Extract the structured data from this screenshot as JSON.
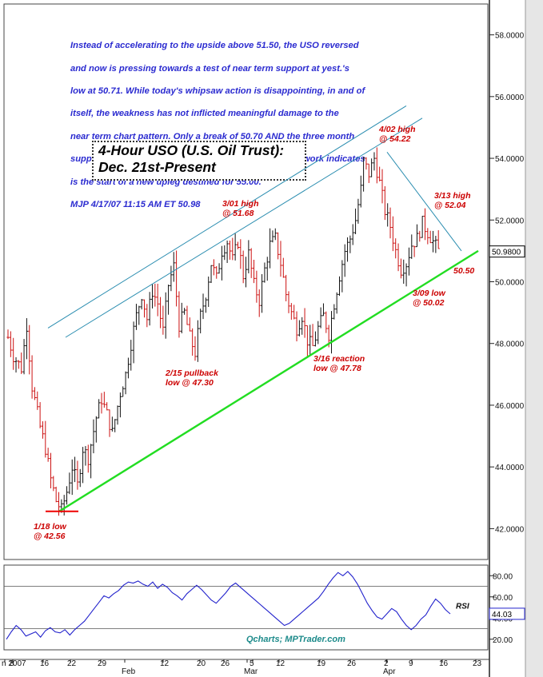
{
  "commentary": {
    "lines": [
      "Instead of accelerating to the upside above 51.50, the USO reversed",
      "and now is pressing towards a test of near term support at yest.'s",
      "low at 50.71. While today's whipsaw action is disappointing, in and of",
      "itself, the weakness has not inflicted meaningful damage to the",
      "near term chart pattern. Only a break of 50.70 AND the three month",
      "support line at 50.50 will start to compromise what my work indicates",
      "is the start of a new upleg destined for 55.00.",
      "MJP 4/17/07  11:15 AM ET 50.98"
    ]
  },
  "title": {
    "line1": "4-Hour USO (U.S. Oil Trust):",
    "line2": "Dec. 21st-Present"
  },
  "annotations": {
    "low_0118": [
      "1/18 low",
      "@ 42.56"
    ],
    "pullback_0215": [
      "2/15 pullback",
      "low @ 47.30"
    ],
    "high_0301": [
      "3/01 high",
      "@ 51.68"
    ],
    "reaction_0316": [
      "3/16 reaction",
      "low @ 47.78"
    ],
    "high_0402": [
      "4/02 high",
      "@ 54.22"
    ],
    "high_0313": [
      "3/13 high",
      "@ 52.04"
    ],
    "low_0309": [
      "3/09 low",
      "@ 50.02"
    ],
    "support_label": "50.50"
  },
  "colors": {
    "bars_up": "#111111",
    "bars_down": "#cc1111",
    "channel": "#2a8db0",
    "support": "#22dd22",
    "annotation": "#cc0000",
    "commentary": "#2b2bd0",
    "rsi_line": "#2222cc",
    "last_price_box": "#000000"
  },
  "chart_data": [
    {
      "type": "ohlc",
      "title": "4-Hour USO (U.S. Oil Trust): Dec. 21st-Present",
      "y_axis": {
        "ylim": [
          41.0,
          59.0
        ],
        "ticks": [
          "42.0000",
          "44.0000",
          "46.0000",
          "48.0000",
          "50.0000",
          "52.0000",
          "54.0000",
          "56.0000",
          "58.0000"
        ],
        "tick_values": [
          42,
          44,
          46,
          48,
          50,
          52,
          54,
          56,
          58
        ],
        "side": "right"
      },
      "last_price": "50.9800",
      "last_price_value": 50.98,
      "grid": false,
      "key_levels": [
        {
          "date": "1/18",
          "value": 42.56,
          "kind": "low"
        },
        {
          "date": "2/15",
          "value": 47.3,
          "kind": "pullback low"
        },
        {
          "date": "3/01",
          "value": 51.68,
          "kind": "high"
        },
        {
          "date": "3/09",
          "value": 50.02,
          "kind": "low"
        },
        {
          "date": "3/13",
          "value": 52.04,
          "kind": "high"
        },
        {
          "date": "3/16",
          "value": 47.78,
          "kind": "reaction low"
        },
        {
          "date": "4/02",
          "value": 54.22,
          "kind": "high"
        }
      ],
      "price_path": [
        [
          0,
          48.2
        ],
        [
          2,
          47.6
        ],
        [
          5,
          47.2
        ],
        [
          7,
          48.6
        ],
        [
          9,
          46.6
        ],
        [
          12,
          45.3
        ],
        [
          14,
          44.6
        ],
        [
          16,
          43.6
        ],
        [
          18,
          42.9
        ],
        [
          20,
          42.6
        ],
        [
          22,
          43.2
        ],
        [
          24,
          44.0
        ],
        [
          26,
          43.4
        ],
        [
          28,
          44.6
        ],
        [
          30,
          44.3
        ],
        [
          33,
          45.6
        ],
        [
          35,
          46.2
        ],
        [
          37,
          45.7
        ],
        [
          39,
          45.1
        ],
        [
          42,
          46.4
        ],
        [
          44,
          47.0
        ],
        [
          46,
          48.0
        ],
        [
          48,
          48.9
        ],
        [
          50,
          49.6
        ],
        [
          52,
          48.8
        ],
        [
          54,
          49.7
        ],
        [
          56,
          49.3
        ],
        [
          58,
          48.4
        ],
        [
          60,
          49.9
        ],
        [
          62,
          50.5
        ],
        [
          64,
          48.6
        ],
        [
          66,
          49.0
        ],
        [
          68,
          48.2
        ],
        [
          70,
          47.7
        ],
        [
          72,
          48.9
        ],
        [
          74,
          49.6
        ],
        [
          76,
          50.6
        ],
        [
          78,
          50.1
        ],
        [
          80,
          51.0
        ],
        [
          82,
          51.3
        ],
        [
          84,
          50.7
        ],
        [
          86,
          51.3
        ],
        [
          88,
          50.2
        ],
        [
          90,
          50.9
        ],
        [
          92,
          49.9
        ],
        [
          94,
          49.4
        ],
        [
          96,
          50.4
        ],
        [
          98,
          51.2
        ],
        [
          100,
          51.4
        ],
        [
          102,
          50.6
        ],
        [
          104,
          49.6
        ],
        [
          106,
          49.0
        ],
        [
          108,
          48.5
        ],
        [
          110,
          48.9
        ],
        [
          112,
          48.1
        ],
        [
          114,
          47.9
        ],
        [
          116,
          48.5
        ],
        [
          118,
          48.9
        ],
        [
          120,
          48.3
        ],
        [
          122,
          49.3
        ],
        [
          124,
          50.2
        ],
        [
          126,
          51.0
        ],
        [
          128,
          51.4
        ],
        [
          130,
          52.0
        ],
        [
          132,
          53.0
        ],
        [
          133,
          53.9
        ],
        [
          135,
          53.5
        ],
        [
          137,
          54.0
        ],
        [
          139,
          53.2
        ],
        [
          141,
          52.3
        ],
        [
          143,
          51.8
        ],
        [
          145,
          51.0
        ],
        [
          147,
          50.4
        ],
        [
          149,
          50.6
        ],
        [
          151,
          51.2
        ],
        [
          153,
          51.4
        ],
        [
          155,
          51.9
        ],
        [
          157,
          51.6
        ],
        [
          159,
          51.3
        ],
        [
          161,
          51.0
        ]
      ],
      "support_line": {
        "start": {
          "date": "1/18",
          "value": 42.56
        },
        "end_value": 50.5
      },
      "x_axis": {
        "labels": [
          "n 2007",
          "8",
          "16",
          "22",
          "29",
          "Feb",
          "12",
          "20",
          "26",
          "5",
          "Mar",
          "12",
          "19",
          "26",
          "2",
          "Apr",
          "9",
          "16",
          "23"
        ]
      }
    },
    {
      "type": "line",
      "name": "RSI",
      "label": "RSI",
      "ylim": [
        10,
        90
      ],
      "ticks": [
        "20.00",
        "40.00",
        "60.00",
        "80.00"
      ],
      "tick_values": [
        20,
        40,
        60,
        80
      ],
      "reference_lines": [
        30,
        70
      ],
      "last_value": "44.03",
      "values": [
        20,
        27,
        33,
        29,
        23,
        25,
        27,
        22,
        28,
        31,
        27,
        26,
        29,
        24,
        29,
        33,
        37,
        43,
        49,
        55,
        61,
        59,
        63,
        66,
        71,
        74,
        73,
        75,
        72,
        70,
        74,
        68,
        72,
        69,
        64,
        61,
        57,
        63,
        67,
        71,
        67,
        62,
        57,
        54,
        59,
        64,
        70,
        73,
        69,
        65,
        61,
        57,
        53,
        49,
        45,
        41,
        37,
        33,
        35,
        39,
        43,
        47,
        51,
        55,
        59,
        65,
        72,
        78,
        83,
        80,
        84,
        79,
        72,
        63,
        54,
        47,
        41,
        39,
        44,
        49,
        46,
        39,
        33,
        29,
        33,
        39,
        43,
        51,
        58,
        54,
        48,
        44
      ],
      "credit": "Qcharts; MPTrader.com"
    }
  ]
}
